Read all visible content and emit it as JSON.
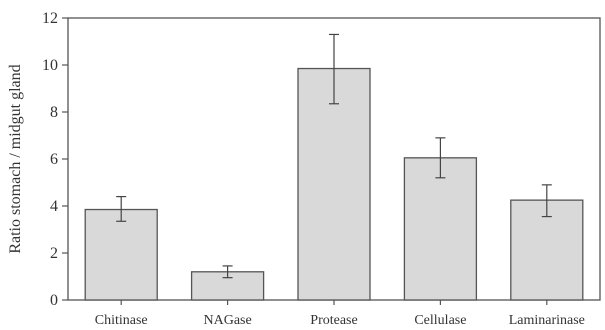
{
  "chart_data": {
    "type": "bar",
    "categories": [
      "Chitinase",
      "NAGase",
      "Protease",
      "Cellulase",
      "Laminarinase"
    ],
    "values": [
      3.85,
      1.2,
      9.85,
      6.05,
      4.25
    ],
    "error": [
      [
        3.35,
        4.4
      ],
      [
        0.95,
        1.45
      ],
      [
        8.35,
        11.3
      ],
      [
        5.2,
        6.9
      ],
      [
        3.55,
        4.9
      ]
    ],
    "title": "",
    "xlabel": "",
    "ylabel": "Ratio stomach / midgut gland",
    "ylim": [
      0,
      12
    ],
    "yticks": [
      "0",
      "2",
      "4",
      "6",
      "8",
      "10",
      "12"
    ],
    "grid": false,
    "bar_fill": "#d9d9d9",
    "bar_stroke": "#555555",
    "axis_color": "#555555"
  }
}
